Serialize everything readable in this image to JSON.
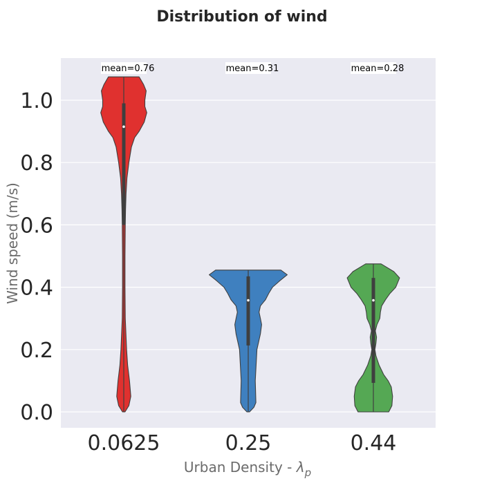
{
  "chart_data": {
    "type": "violin",
    "title": "Distribution of wind",
    "xlabel": "Urban Density - ",
    "xlabel_symbol": "λ",
    "xlabel_subscript": "p",
    "ylabel": "Wind speed (m/s)",
    "ylim": [
      -0.05,
      1.13
    ],
    "yticks": [
      0.0,
      0.2,
      0.4,
      0.6,
      0.8,
      1.0
    ],
    "ytick_labels": [
      "0.0",
      "0.2",
      "0.4",
      "0.6",
      "0.8",
      "1.0"
    ],
    "categories": [
      "0.0625",
      "0.25",
      "0.44"
    ],
    "grid": true,
    "colors": [
      "#E0312F",
      "#3F80BF",
      "#55A854"
    ],
    "series": [
      {
        "category": "0.0625",
        "mean_label": "mean=0.76",
        "median": 0.915,
        "q1": 0.6,
        "q3": 0.99,
        "min": 0.0,
        "max": 1.075,
        "profile": [
          [
            0.0,
            0.1
          ],
          [
            0.02,
            0.4
          ],
          [
            0.05,
            0.55
          ],
          [
            0.1,
            0.45
          ],
          [
            0.15,
            0.3
          ],
          [
            0.2,
            0.22
          ],
          [
            0.3,
            0.12
          ],
          [
            0.4,
            0.1
          ],
          [
            0.5,
            0.1
          ],
          [
            0.6,
            0.12
          ],
          [
            0.65,
            0.14
          ],
          [
            0.7,
            0.18
          ],
          [
            0.75,
            0.25
          ],
          [
            0.8,
            0.4
          ],
          [
            0.85,
            0.6
          ],
          [
            0.88,
            0.85
          ],
          [
            0.9,
            1.2
          ],
          [
            0.93,
            1.6
          ],
          [
            0.96,
            1.8
          ],
          [
            0.98,
            1.65
          ],
          [
            1.0,
            1.65
          ],
          [
            1.03,
            1.75
          ],
          [
            1.05,
            1.55
          ],
          [
            1.075,
            1.2
          ]
        ]
      },
      {
        "category": "0.25",
        "mean_label": "mean=0.31",
        "median": 0.358,
        "q1": 0.213,
        "q3": 0.435,
        "min": 0.0,
        "max": 0.455,
        "profile": [
          [
            0.0,
            0.1
          ],
          [
            0.015,
            0.45
          ],
          [
            0.03,
            0.6
          ],
          [
            0.1,
            0.55
          ],
          [
            0.2,
            0.68
          ],
          [
            0.25,
            0.95
          ],
          [
            0.28,
            1.05
          ],
          [
            0.3,
            0.95
          ],
          [
            0.32,
            0.85
          ],
          [
            0.34,
            0.95
          ],
          [
            0.36,
            1.35
          ],
          [
            0.38,
            1.6
          ],
          [
            0.4,
            1.9
          ],
          [
            0.42,
            2.45
          ],
          [
            0.44,
            3.05
          ],
          [
            0.455,
            2.55
          ]
        ]
      },
      {
        "category": "0.44",
        "mean_label": "mean=0.28",
        "median": 0.358,
        "q1": 0.093,
        "q3": 0.43,
        "min": 0.0,
        "max": 0.475,
        "profile": [
          [
            0.0,
            1.2
          ],
          [
            0.02,
            1.45
          ],
          [
            0.05,
            1.5
          ],
          [
            0.08,
            1.4
          ],
          [
            0.1,
            1.15
          ],
          [
            0.12,
            0.8
          ],
          [
            0.15,
            0.45
          ],
          [
            0.18,
            0.2
          ],
          [
            0.2,
            0.12
          ],
          [
            0.22,
            0.2
          ],
          [
            0.24,
            0.25
          ],
          [
            0.26,
            0.15
          ],
          [
            0.28,
            0.28
          ],
          [
            0.3,
            0.5
          ],
          [
            0.32,
            0.55
          ],
          [
            0.34,
            0.65
          ],
          [
            0.36,
            0.95
          ],
          [
            0.38,
            1.3
          ],
          [
            0.4,
            1.75
          ],
          [
            0.43,
            2.05
          ],
          [
            0.45,
            1.6
          ],
          [
            0.475,
            0.6
          ]
        ]
      }
    ]
  }
}
